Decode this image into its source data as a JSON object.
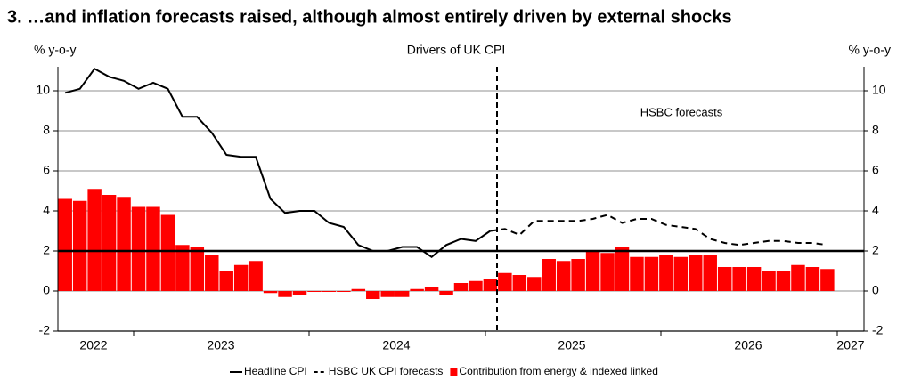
{
  "chart_data": {
    "type": "bar-line",
    "title": "3. …and inflation forecasts raised, although almost entirely driven by external shocks",
    "subtitle": "Drivers of UK CPI",
    "y_label": "% y-o-y",
    "y2_label": "% y-o-y",
    "annotation": "HSBC forecasts",
    "x_labels": [
      "2022",
      "2023",
      "2024",
      "2025",
      "2026",
      "2027"
    ],
    "categories": [
      null,
      null,
      null,
      null,
      null,
      null,
      null,
      null,
      null,
      null,
      null,
      null,
      null,
      null,
      null,
      null,
      null,
      null,
      null,
      null,
      null,
      null,
      null,
      null,
      null,
      null,
      null,
      null,
      null,
      null,
      null,
      null,
      null,
      null,
      null,
      null,
      null,
      null,
      null,
      null,
      null,
      null,
      null,
      null,
      null,
      null,
      null,
      null,
      null,
      null,
      null,
      null,
      null,
      null
    ],
    "series": [
      {
        "name": "Headline CPI",
        "kind": "line",
        "color": "#000000",
        "values": [
          9.9,
          10.1,
          11.1,
          10.7,
          10.5,
          10.1,
          10.4,
          10.1,
          8.7,
          8.7,
          7.9,
          6.8,
          6.7,
          6.7,
          4.6,
          3.9,
          4.0,
          4.0,
          3.4,
          3.2,
          2.3,
          2.0,
          2.0,
          2.2,
          2.2,
          1.7,
          2.3,
          2.6,
          2.5,
          3.0,
          null,
          null,
          null,
          null,
          null,
          null,
          null,
          null,
          null,
          null,
          null,
          null,
          null,
          null,
          null,
          null,
          null,
          null,
          null,
          null,
          null,
          null,
          null,
          null
        ]
      },
      {
        "name": "HSBC UK CPI forecasts",
        "kind": "dashed",
        "color": "#000000",
        "values": [
          null,
          null,
          null,
          null,
          null,
          null,
          null,
          null,
          null,
          null,
          null,
          null,
          null,
          null,
          null,
          null,
          null,
          null,
          null,
          null,
          null,
          null,
          null,
          null,
          null,
          null,
          null,
          null,
          null,
          3.0,
          3.1,
          2.8,
          3.5,
          3.5,
          3.5,
          3.5,
          3.6,
          3.8,
          3.4,
          3.6,
          3.6,
          3.3,
          3.2,
          3.1,
          2.6,
          2.4,
          2.3,
          2.4,
          2.5,
          2.5,
          2.4,
          2.4,
          2.3,
          null
        ]
      },
      {
        "name": "Contribution from energy & indexed linked",
        "kind": "bar",
        "color": "#ff0000",
        "values": [
          4.6,
          4.5,
          5.1,
          4.8,
          4.7,
          4.2,
          4.2,
          3.8,
          2.3,
          2.2,
          1.8,
          1.0,
          1.3,
          1.5,
          -0.1,
          -0.3,
          -0.2,
          0.0,
          0.0,
          0.0,
          0.1,
          -0.4,
          -0.3,
          -0.3,
          0.1,
          0.2,
          -0.2,
          0.4,
          0.5,
          0.6,
          0.9,
          0.8,
          0.7,
          1.6,
          1.5,
          1.6,
          2.0,
          1.9,
          2.2,
          1.7,
          1.7,
          1.8,
          1.7,
          1.8,
          1.8,
          1.2,
          1.2,
          1.2,
          1.0,
          1.0,
          1.3,
          1.2,
          1.1,
          null
        ]
      }
    ],
    "reference_line": 2,
    "ylim": [
      -2,
      11.2
    ],
    "yticks": [
      -2,
      0,
      2,
      4,
      6,
      8,
      10
    ],
    "y2lim": [
      -2,
      11.2
    ],
    "y2ticks": [
      -2,
      0,
      2,
      4,
      6,
      8,
      10
    ],
    "grid": true
  }
}
